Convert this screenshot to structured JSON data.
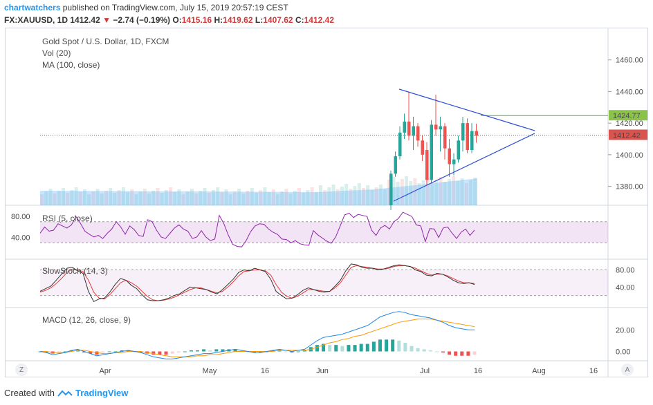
{
  "header": {
    "author": "chartwatchers",
    "published_text": "published on TradingView.com, July 15, 2019 20:57:19 CEST",
    "symbol": "FX:XAUUSD, 1D",
    "last": "1412.42",
    "change_arrow": "▼",
    "change": "−2.74 (−0.19%)",
    "o_label": "O:",
    "o_value": "1415.16",
    "h_label": "H:",
    "h_value": "1419.62",
    "l_label": "L:",
    "l_value": "1407.62",
    "c_label": "C:",
    "c_value": "1412.42"
  },
  "legend": {
    "line1": "Gold Spot / U.S. Dollar, 1D, FXCM",
    "line2": "Vol (20)",
    "line3": "MA (100, close)"
  },
  "panes": {
    "rsi_title": "RSI (5, close)",
    "stoch_title": "SlowStoch (14, 3)",
    "macd_title": "MACD (12, 26, close, 9)"
  },
  "footer": {
    "created_with": "Created with",
    "brand": "TradingView"
  },
  "corners": {
    "left": "Z",
    "right": "A"
  },
  "colors": {
    "up": "#26a69a",
    "down": "#ef5350",
    "triangle": "#2f4fd8",
    "ma": "#1e88e5",
    "price_line": "#d32f2f",
    "resistance": "#4caf50",
    "rsi": "#8e24aa",
    "stoch_k": "#333333",
    "stoch_d": "#e53935",
    "macd": "#1e88e5",
    "signal": "#ff9800"
  },
  "chart_data": {
    "type": "candlestick",
    "x_ticks": [
      "Apr",
      "May",
      "16",
      "Jun",
      "Jul",
      "16",
      "Aug",
      "16"
    ],
    "price_axis": {
      "ticks": [
        1460,
        1440,
        1420,
        1400,
        1380
      ],
      "labels": [
        "1460.00",
        "1440.00",
        "1420.00",
        "1400.00",
        "1380.00"
      ],
      "ylim": [
        1368,
        1480
      ]
    },
    "price_markers": {
      "resistance": "1424.77",
      "last": "1412.42"
    },
    "candles": [
      {
        "o": 1368,
        "c": 1388,
        "h": 1390,
        "l": 1365
      },
      {
        "o": 1388,
        "c": 1399,
        "h": 1402,
        "l": 1386
      },
      {
        "o": 1399,
        "c": 1414,
        "h": 1418,
        "l": 1397
      },
      {
        "o": 1414,
        "c": 1421,
        "h": 1426,
        "l": 1410
      },
      {
        "o": 1421,
        "c": 1412,
        "h": 1440,
        "l": 1409
      },
      {
        "o": 1412,
        "c": 1418,
        "h": 1424,
        "l": 1403
      },
      {
        "o": 1418,
        "c": 1409,
        "h": 1420,
        "l": 1405
      },
      {
        "o": 1409,
        "c": 1400,
        "h": 1412,
        "l": 1396
      },
      {
        "o": 1403,
        "c": 1384,
        "h": 1408,
        "l": 1381
      },
      {
        "o": 1384,
        "c": 1419,
        "h": 1422,
        "l": 1382
      },
      {
        "o": 1419,
        "c": 1416,
        "h": 1438,
        "l": 1412
      },
      {
        "o": 1416,
        "c": 1418,
        "h": 1424,
        "l": 1402
      },
      {
        "o": 1418,
        "c": 1404,
        "h": 1420,
        "l": 1397
      },
      {
        "o": 1404,
        "c": 1394,
        "h": 1410,
        "l": 1386
      },
      {
        "o": 1394,
        "c": 1397,
        "h": 1401,
        "l": 1387
      },
      {
        "o": 1397,
        "c": 1409,
        "h": 1412,
        "l": 1395
      },
      {
        "o": 1409,
        "c": 1420,
        "h": 1424,
        "l": 1402
      },
      {
        "o": 1420,
        "c": 1403,
        "h": 1423,
        "l": 1401
      },
      {
        "o": 1403,
        "c": 1415,
        "h": 1420,
        "l": 1401
      },
      {
        "o": 1415,
        "c": 1412,
        "h": 1419.6,
        "l": 1407.6
      }
    ],
    "rsi": {
      "levels": [
        70,
        30
      ],
      "ticks": [
        "80.00",
        "40.00"
      ],
      "values": [
        48,
        60,
        52,
        54,
        66,
        62,
        58,
        64,
        80,
        67,
        52,
        46,
        41,
        44,
        38,
        48,
        56,
        70,
        60,
        46,
        62,
        55,
        44,
        42,
        74,
        70,
        54,
        41,
        38,
        48,
        58,
        64,
        56,
        52,
        38,
        41,
        53,
        41,
        34,
        37,
        82,
        67,
        45,
        27,
        23,
        22,
        34,
        51,
        62,
        66,
        65,
        56,
        50,
        46,
        37,
        36,
        30,
        34,
        28,
        26,
        25,
        53,
        45,
        39,
        33,
        29,
        41,
        62,
        83,
        86,
        78,
        84,
        82,
        80,
        54,
        44,
        58,
        63,
        56,
        70,
        76,
        88,
        84,
        80,
        64,
        62,
        32,
        57,
        56,
        40,
        58,
        60,
        48,
        38,
        50,
        56,
        44,
        54
      ]
    },
    "stoch": {
      "levels": [
        80,
        20
      ],
      "ticks": [
        "80.00",
        "40.00"
      ],
      "k": [
        30,
        36,
        42,
        56,
        70,
        84,
        86,
        78,
        72,
        30,
        6,
        12,
        14,
        28,
        46,
        60,
        56,
        44,
        36,
        22,
        10,
        8,
        8,
        10,
        14,
        20,
        24,
        32,
        40,
        38,
        36,
        34,
        28,
        24,
        34,
        46,
        58,
        74,
        80,
        78,
        84,
        80,
        76,
        58,
        30,
        20,
        12,
        14,
        22,
        32,
        38,
        34,
        30,
        28,
        30,
        42,
        56,
        78,
        94,
        92,
        86,
        84,
        84,
        80,
        82,
        86,
        90,
        92,
        90,
        88,
        80,
        76,
        68,
        66,
        72,
        70,
        64,
        56,
        50,
        48,
        50,
        46
      ],
      "d": [
        28,
        32,
        38,
        48,
        60,
        74,
        82,
        80,
        76,
        56,
        28,
        14,
        12,
        22,
        36,
        50,
        56,
        50,
        42,
        30,
        18,
        10,
        8,
        9,
        12,
        16,
        22,
        28,
        34,
        38,
        38,
        34,
        30,
        26,
        30,
        40,
        52,
        66,
        76,
        78,
        80,
        80,
        78,
        68,
        46,
        28,
        18,
        14,
        18,
        26,
        34,
        34,
        32,
        30,
        30,
        38,
        50,
        68,
        86,
        90,
        88,
        86,
        84,
        82,
        82,
        84,
        88,
        90,
        90,
        88,
        84,
        78,
        72,
        68,
        70,
        70,
        66,
        60,
        54,
        50,
        50,
        48
      ]
    },
    "macd": {
      "ticks": [
        "20.00",
        "0.00"
      ],
      "ylim": [
        -8,
        40
      ],
      "macd": [
        0,
        -1,
        -3,
        -2,
        -1,
        1,
        2,
        0,
        -2,
        -4,
        -3,
        -2,
        -1,
        0,
        1,
        0,
        -1,
        -3,
        -5,
        -6,
        -7,
        -7,
        -6,
        -5,
        -4,
        -3,
        -2,
        -2,
        -1,
        0,
        1,
        2,
        1,
        0,
        -1,
        -1,
        0,
        1,
        2,
        1,
        0,
        1,
        2,
        6,
        10,
        13,
        14,
        15,
        16,
        18,
        20,
        22,
        24,
        28,
        32,
        34,
        36,
        37,
        36,
        34,
        33,
        32,
        31,
        29,
        27,
        24,
        22,
        21,
        20,
        20
      ],
      "signal": [
        0,
        0,
        -1,
        -1,
        -1,
        0,
        1,
        1,
        0,
        -1,
        -2,
        -2,
        -1,
        -1,
        0,
        0,
        0,
        -1,
        -2,
        -3,
        -4,
        -5,
        -5,
        -5,
        -5,
        -4,
        -4,
        -3,
        -3,
        -2,
        -1,
        0,
        0,
        0,
        0,
        0,
        0,
        0,
        1,
        1,
        1,
        1,
        1,
        2,
        4,
        6,
        8,
        9,
        11,
        12,
        14,
        15,
        17,
        19,
        21,
        23,
        25,
        27,
        28,
        29,
        30,
        30,
        30,
        29,
        28,
        27,
        26,
        25,
        24,
        23
      ],
      "hist": [
        0,
        -1,
        -2,
        -1,
        0,
        1,
        1,
        -1,
        -2,
        -3,
        -1,
        0,
        0,
        1,
        1,
        0,
        -1,
        -2,
        -3,
        -3,
        -3,
        -2,
        -1,
        0,
        1,
        1,
        2,
        1,
        2,
        2,
        2,
        2,
        1,
        0,
        -1,
        -1,
        0,
        1,
        1,
        0,
        -1,
        0,
        1,
        4,
        6,
        7,
        6,
        6,
        5,
        6,
        6,
        7,
        7,
        9,
        11,
        11,
        11,
        10,
        8,
        5,
        3,
        2,
        1,
        0,
        -1,
        -3,
        -4,
        -4,
        -4,
        -3
      ]
    }
  }
}
